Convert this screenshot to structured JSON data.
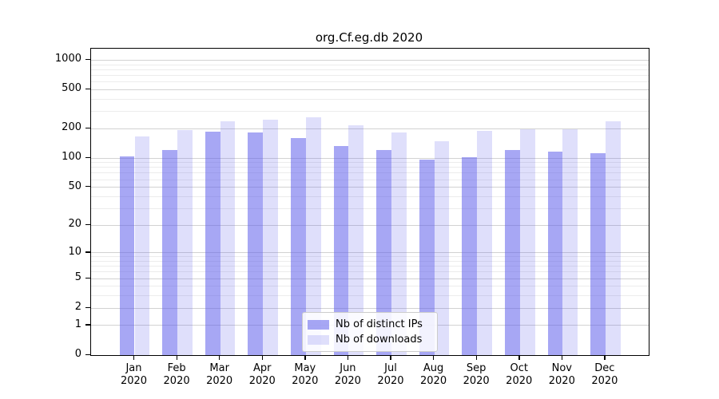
{
  "title": "org.Cf.eg.db 2020",
  "legend": {
    "items": [
      {
        "label": "Nb of distinct IPs",
        "series_key": "distinct_ips"
      },
      {
        "label": "Nb of downloads",
        "series_key": "downloads"
      }
    ],
    "position": "lower center"
  },
  "colors": {
    "distinct_ips": "rgba(95,95,235,0.55)",
    "downloads": "rgba(95,95,235,0.20)",
    "grid_major": "#d2d2d2",
    "grid_minor": "#ececec",
    "axis": "#000000",
    "background": "#ffffff"
  },
  "axes": {
    "yticks": [
      1000,
      500,
      200,
      100,
      50,
      20,
      10,
      5,
      2,
      1,
      0
    ],
    "minor_gridline_values": [
      3,
      4,
      6,
      7,
      8,
      9,
      30,
      40,
      60,
      70,
      80,
      90,
      300,
      400,
      600,
      700,
      800,
      900
    ],
    "year": "2020",
    "months": [
      "Jan",
      "Feb",
      "Mar",
      "Apr",
      "May",
      "Jun",
      "Jul",
      "Aug",
      "Sep",
      "Oct",
      "Nov",
      "Dec"
    ]
  },
  "chart_data": {
    "type": "bar",
    "title": "org.Cf.eg.db 2020",
    "categories": [
      "Jan 2020",
      "Feb 2020",
      "Mar 2020",
      "Apr 2020",
      "May 2020",
      "Jun 2020",
      "Jul 2020",
      "Aug 2020",
      "Sep 2020",
      "Oct 2020",
      "Nov 2020",
      "Dec 2020"
    ],
    "series": [
      {
        "name": "Nb of distinct IPs",
        "values": [
          105,
          120,
          188,
          182,
          160,
          133,
          120,
          97,
          103,
          120,
          117,
          113
        ]
      },
      {
        "name": "Nb of downloads",
        "values": [
          168,
          193,
          238,
          246,
          262,
          216,
          184,
          148,
          190,
          198,
          196,
          238
        ]
      }
    ],
    "xlabel": "",
    "ylabel": "",
    "yscale": "log1p",
    "yticks": [
      0,
      1,
      2,
      5,
      10,
      20,
      50,
      100,
      200,
      500,
      1000
    ],
    "ylim": [
      0,
      1300
    ],
    "grid": true,
    "legend_position": "lower center"
  }
}
